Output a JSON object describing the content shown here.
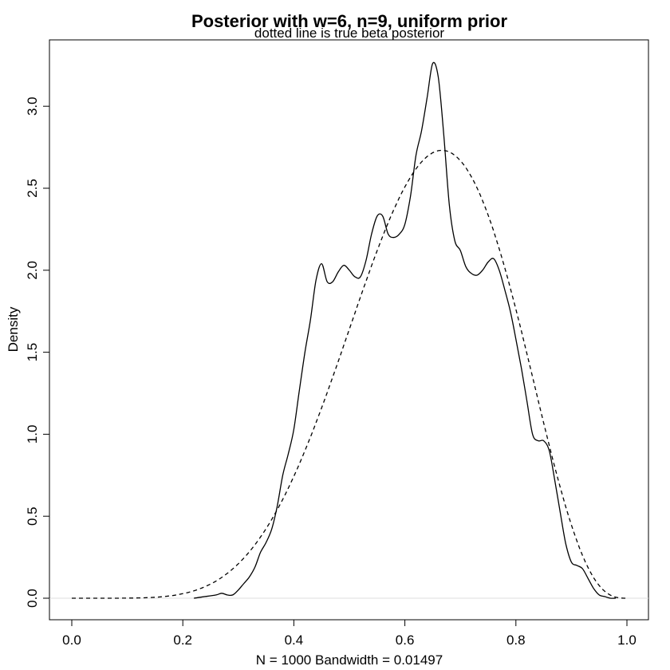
{
  "chart_data": {
    "type": "line",
    "title": "Posterior with w=6, n=9, uniform prior",
    "subtitle": "dotted line is true beta posterior",
    "xlabel": "N = 1000   Bandwidth = 0.01497",
    "ylabel": "Density",
    "xlim": [
      0.0,
      1.0
    ],
    "ylim": [
      0.0,
      3.3
    ],
    "x_ticks": [
      "0.0",
      "0.2",
      "0.4",
      "0.6",
      "0.8",
      "1.0"
    ],
    "y_ticks": [
      "0.0",
      "0.5",
      "1.0",
      "1.5",
      "2.0",
      "2.5",
      "3.0"
    ],
    "zero_line_color": "#dddddd",
    "series": [
      {
        "style": "solid",
        "x": [
          0.22,
          0.24,
          0.26,
          0.27,
          0.28,
          0.29,
          0.3,
          0.31,
          0.32,
          0.33,
          0.34,
          0.35,
          0.36,
          0.37,
          0.38,
          0.39,
          0.4,
          0.41,
          0.42,
          0.43,
          0.44,
          0.45,
          0.46,
          0.47,
          0.48,
          0.49,
          0.5,
          0.51,
          0.52,
          0.53,
          0.54,
          0.55,
          0.56,
          0.57,
          0.58,
          0.59,
          0.6,
          0.61,
          0.62,
          0.63,
          0.64,
          0.65,
          0.66,
          0.67,
          0.68,
          0.69,
          0.7,
          0.71,
          0.72,
          0.73,
          0.74,
          0.75,
          0.76,
          0.77,
          0.78,
          0.79,
          0.8,
          0.81,
          0.82,
          0.83,
          0.84,
          0.85,
          0.86,
          0.87,
          0.88,
          0.89,
          0.9,
          0.91,
          0.92,
          0.93,
          0.94,
          0.95,
          0.96,
          0.97,
          0.98
        ],
        "y": [
          0.0,
          0.01,
          0.02,
          0.03,
          0.02,
          0.02,
          0.05,
          0.09,
          0.13,
          0.19,
          0.28,
          0.34,
          0.42,
          0.56,
          0.75,
          0.88,
          1.03,
          1.27,
          1.5,
          1.7,
          1.94,
          2.04,
          1.93,
          1.93,
          1.99,
          2.03,
          2.0,
          1.96,
          1.96,
          2.06,
          2.22,
          2.33,
          2.33,
          2.22,
          2.2,
          2.22,
          2.28,
          2.45,
          2.7,
          2.85,
          3.05,
          3.26,
          3.18,
          2.83,
          2.4,
          2.18,
          2.12,
          2.02,
          1.98,
          1.97,
          2.0,
          2.05,
          2.07,
          2.0,
          1.88,
          1.75,
          1.58,
          1.4,
          1.2,
          1.0,
          0.96,
          0.96,
          0.9,
          0.72,
          0.52,
          0.33,
          0.22,
          0.2,
          0.18,
          0.12,
          0.06,
          0.02,
          0.01,
          0.0,
          0.0
        ]
      },
      {
        "style": "dashed",
        "beta": {
          "alpha": 7,
          "beta": 4
        },
        "x_range": [
          0.0,
          1.0
        ]
      }
    ]
  }
}
